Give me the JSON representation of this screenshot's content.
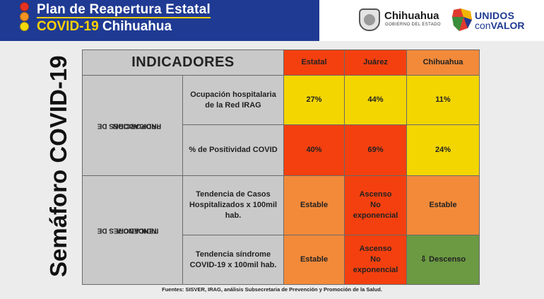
{
  "header": {
    "title_line1": "Plan de Reapertura Estatal",
    "title_line2_a": "COVID-19",
    "title_line2_b": "Chihuahua",
    "colors": {
      "bar": "#1f3a93",
      "accent": "#ffd100",
      "light_red": "#e53323",
      "light_orange": "#f39323",
      "light_yellow": "#f4d90b",
      "light_green": "#4caf50"
    },
    "logo_gov_name": "Chihuahua",
    "logo_gov_sub": "GOBIERNO DEL ESTADO",
    "logo_unidos": "UNIDOS",
    "logo_con": "con",
    "logo_valor": "VALOR"
  },
  "side_title": "Semáforo COVID-19",
  "table": {
    "header": "INDICADORES",
    "columns": [
      "Estatal",
      "Juárez",
      "Chihuahua"
    ],
    "column_colors": [
      "#f4400f",
      "#f4400f",
      "#f28a3a"
    ],
    "categories": [
      {
        "label_line1": "INDICADORES DE",
        "label_line2": "PROPORCION"
      },
      {
        "label_line1": "INDICADORES DE",
        "label_line2": "TENDENCIA"
      }
    ],
    "rows": [
      {
        "indicator_line1": "Ocupación hospitalaria",
        "indicator_line2": "de la Red  IRAG",
        "indicator_line3": "",
        "cells": [
          {
            "l1": "27%",
            "l2": "",
            "l3": "",
            "color": "#f3d600"
          },
          {
            "l1": "44%",
            "l2": "",
            "l3": "",
            "color": "#f3d600"
          },
          {
            "l1": "11%",
            "l2": "",
            "l3": "",
            "color": "#f3d600"
          }
        ]
      },
      {
        "indicator_line1": "% de Positividad COVID",
        "indicator_line2": "",
        "indicator_line3": "",
        "cells": [
          {
            "l1": "40%",
            "l2": "",
            "l3": "",
            "color": "#f4400f"
          },
          {
            "l1": "69%",
            "l2": "",
            "l3": "",
            "color": "#f4400f"
          },
          {
            "l1": "24%",
            "l2": "",
            "l3": "",
            "color": "#f3d600"
          }
        ]
      },
      {
        "indicator_line1": "Tendencia de Casos",
        "indicator_line2": "Hospitalizados x 100mil",
        "indicator_line3": "hab.",
        "cells": [
          {
            "l1": "Estable",
            "l2": "",
            "l3": "",
            "color": "#f28a3a"
          },
          {
            "l1": "Ascenso",
            "l2": "No",
            "l3": "exponencial",
            "color": "#f4400f"
          },
          {
            "l1": "Estable",
            "l2": "",
            "l3": "",
            "color": "#f28a3a"
          }
        ]
      },
      {
        "indicator_line1": "Tendencia síndrome",
        "indicator_line2": "COVID-19 x 100mil hab.",
        "indicator_line3": "",
        "cells": [
          {
            "l1": "Estable",
            "l2": "",
            "l3": "",
            "color": "#f28a3a"
          },
          {
            "l1": "Ascenso",
            "l2": "No",
            "l3": "exponencial",
            "color": "#f4400f"
          },
          {
            "l1": "⇩ Descenso",
            "l2": "",
            "l3": "",
            "color": "#6b9a42"
          }
        ]
      }
    ]
  },
  "footer": "Fuentes: SISVER, IRAG, análisis Subsecretaria de Prevención y Promoción de la Salud."
}
